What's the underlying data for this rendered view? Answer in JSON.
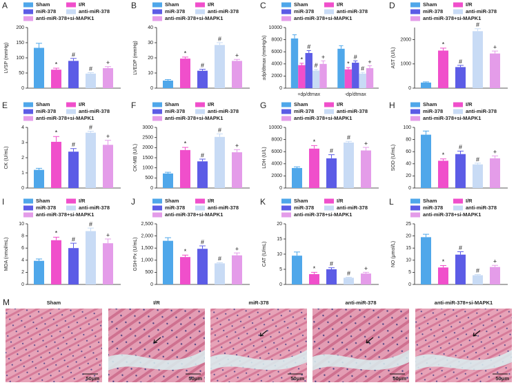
{
  "chart_data": [
    {
      "type": "bar",
      "panel": "A",
      "y_label": "LVSP (mmHg)",
      "ylim": [
        0,
        200
      ],
      "yticks": [
        0,
        50,
        100,
        150,
        200
      ],
      "series": [
        {
          "name": "Sham",
          "color": "#4fa7ea",
          "values": [
            133
          ],
          "errors": [
            15
          ]
        },
        {
          "name": "I/R",
          "color": "#f04fcb",
          "values": [
            61
          ],
          "errors": [
            5
          ],
          "markers": [
            "*"
          ]
        },
        {
          "name": "miR-378",
          "color": "#5c5ce6",
          "values": [
            90
          ],
          "errors": [
            8
          ],
          "markers": [
            "#"
          ]
        },
        {
          "name": "anti-miR-378",
          "color": "#c8dbf5",
          "values": [
            48
          ],
          "errors": [
            3
          ],
          "markers": [
            "#"
          ]
        },
        {
          "name": "anti-miR-378+si-MAPK1",
          "color": "#e49ce9",
          "values": [
            66
          ],
          "errors": [
            5
          ],
          "markers": [
            "+"
          ]
        }
      ]
    },
    {
      "type": "bar",
      "panel": "B",
      "y_label": "LVEDP (mmHg)",
      "ylim": [
        0,
        40
      ],
      "yticks": [
        0,
        10,
        20,
        30,
        40
      ],
      "series": [
        {
          "name": "Sham",
          "color": "#4fa7ea",
          "values": [
            5
          ],
          "errors": [
            0.7
          ]
        },
        {
          "name": "I/R",
          "color": "#f04fcb",
          "values": [
            19.5
          ],
          "errors": [
            1
          ],
          "markers": [
            "*"
          ]
        },
        {
          "name": "miR-378",
          "color": "#5c5ce6",
          "values": [
            11.5
          ],
          "errors": [
            1
          ],
          "markers": [
            "#"
          ]
        },
        {
          "name": "anti-miR-378",
          "color": "#c8dbf5",
          "values": [
            28.5
          ],
          "errors": [
            1.5
          ],
          "markers": [
            "#"
          ]
        },
        {
          "name": "anti-miR-378+si-MAPK1",
          "color": "#e49ce9",
          "values": [
            18
          ],
          "errors": [
            1
          ],
          "markers": [
            "+"
          ]
        }
      ]
    },
    {
      "type": "bar",
      "panel": "C",
      "y_label": "±dp/dtmax (mmHg/s)",
      "ylim": [
        0,
        10000
      ],
      "yticks": [
        0,
        2000,
        4000,
        6000,
        8000,
        10000
      ],
      "categories": [
        "+dp/dtmax",
        "-dp/dtmax"
      ],
      "series": [
        {
          "name": "Sham",
          "color": "#4fa7ea",
          "values": [
            8200,
            6500
          ],
          "errors": [
            600,
            500
          ]
        },
        {
          "name": "I/R",
          "color": "#f04fcb",
          "values": [
            3800,
            3100
          ],
          "errors": [
            300,
            300
          ],
          "markers": [
            "*",
            "*"
          ]
        },
        {
          "name": "miR-378",
          "color": "#5c5ce6",
          "values": [
            5800,
            4200
          ],
          "errors": [
            400,
            300
          ],
          "markers": [
            "#",
            "#"
          ]
        },
        {
          "name": "anti-miR-378",
          "color": "#c8dbf5",
          "values": [
            2900,
            2400
          ],
          "errors": [
            200,
            200
          ],
          "markers": [
            "#",
            "#"
          ]
        },
        {
          "name": "anti-miR-378+si-MAPK1",
          "color": "#e49ce9",
          "values": [
            4000,
            3300
          ],
          "errors": [
            500,
            400
          ],
          "markers": [
            "+",
            "+"
          ]
        }
      ]
    },
    {
      "type": "bar",
      "panel": "D",
      "y_label": "AST (U/L)",
      "ylim": [
        0,
        2500
      ],
      "yticks": [
        0,
        1000,
        2000
      ],
      "series": [
        {
          "name": "Sham",
          "color": "#4fa7ea",
          "values": [
            230
          ],
          "errors": [
            30
          ]
        },
        {
          "name": "I/R",
          "color": "#f04fcb",
          "values": [
            1550
          ],
          "errors": [
            100
          ],
          "markers": [
            "*"
          ]
        },
        {
          "name": "miR-378",
          "color": "#5c5ce6",
          "values": [
            870
          ],
          "errors": [
            70
          ],
          "markers": [
            "#"
          ]
        },
        {
          "name": "anti-miR-378",
          "color": "#c8dbf5",
          "values": [
            2350
          ],
          "errors": [
            100
          ],
          "markers": [
            "#"
          ]
        },
        {
          "name": "anti-miR-378+si-MAPK1",
          "color": "#e49ce9",
          "values": [
            1430
          ],
          "errors": [
            100
          ],
          "markers": [
            "+"
          ]
        }
      ]
    },
    {
      "type": "bar",
      "panel": "E",
      "y_label": "CK (U/mL)",
      "ylim": [
        0,
        4
      ],
      "yticks": [
        0,
        1,
        2,
        3,
        4
      ],
      "series": [
        {
          "name": "Sham",
          "color": "#4fa7ea",
          "values": [
            1.2
          ],
          "errors": [
            0.1
          ]
        },
        {
          "name": "I/R",
          "color": "#f04fcb",
          "values": [
            3.05
          ],
          "errors": [
            0.35
          ],
          "markers": [
            "*"
          ]
        },
        {
          "name": "miR-378",
          "color": "#5c5ce6",
          "values": [
            2.4
          ],
          "errors": [
            0.2
          ],
          "markers": [
            "#"
          ]
        },
        {
          "name": "anti-miR-378",
          "color": "#c8dbf5",
          "values": [
            3.65
          ],
          "errors": [
            0.1
          ],
          "markers": [
            "#"
          ]
        },
        {
          "name": "anti-miR-378+si-MAPK1",
          "color": "#e49ce9",
          "values": [
            2.85
          ],
          "errors": [
            0.3
          ],
          "markers": [
            "+"
          ]
        }
      ]
    },
    {
      "type": "bar",
      "panel": "F",
      "y_label": "CK-MB (U/L)",
      "ylim": [
        0,
        3000
      ],
      "yticks": [
        0,
        500,
        1000,
        1500,
        2000,
        2500,
        3000
      ],
      "series": [
        {
          "name": "Sham",
          "color": "#4fa7ea",
          "values": [
            720
          ],
          "errors": [
            60
          ]
        },
        {
          "name": "I/R",
          "color": "#f04fcb",
          "values": [
            1880
          ],
          "errors": [
            130
          ],
          "markers": [
            "*"
          ]
        },
        {
          "name": "miR-378",
          "color": "#5c5ce6",
          "values": [
            1320
          ],
          "errors": [
            110
          ],
          "markers": [
            "#"
          ]
        },
        {
          "name": "anti-miR-378",
          "color": "#c8dbf5",
          "values": [
            2530
          ],
          "errors": [
            150
          ],
          "markers": [
            "#"
          ]
        },
        {
          "name": "anti-miR-378+si-MAPK1",
          "color": "#e49ce9",
          "values": [
            1770
          ],
          "errors": [
            130
          ],
          "markers": [
            "+"
          ]
        }
      ]
    },
    {
      "type": "bar",
      "panel": "G",
      "y_label": "LDH (U/L)",
      "ylim": [
        0,
        10000
      ],
      "yticks": [
        0,
        2000,
        4000,
        6000,
        8000,
        10000
      ],
      "series": [
        {
          "name": "Sham",
          "color": "#4fa7ea",
          "values": [
            3300
          ],
          "errors": [
            200
          ]
        },
        {
          "name": "I/R",
          "color": "#f04fcb",
          "values": [
            6500
          ],
          "errors": [
            500
          ],
          "markers": [
            "*"
          ]
        },
        {
          "name": "miR-378",
          "color": "#5c5ce6",
          "values": [
            4900
          ],
          "errors": [
            600
          ],
          "markers": [
            "#"
          ]
        },
        {
          "name": "anti-miR-378",
          "color": "#c8dbf5",
          "values": [
            7500
          ],
          "errors": [
            200
          ],
          "markers": [
            "#"
          ]
        },
        {
          "name": "anti-miR-378+si-MAPK1",
          "color": "#e49ce9",
          "values": [
            6200
          ],
          "errors": [
            500
          ],
          "markers": [
            "+"
          ]
        }
      ]
    },
    {
      "type": "bar",
      "panel": "H",
      "y_label": "SOD (U/mL)",
      "ylim": [
        0,
        100
      ],
      "yticks": [
        0,
        20,
        40,
        60,
        80,
        100
      ],
      "series": [
        {
          "name": "Sham",
          "color": "#4fa7ea",
          "values": [
            88
          ],
          "errors": [
            6
          ]
        },
        {
          "name": "I/R",
          "color": "#f04fcb",
          "values": [
            45
          ],
          "errors": [
            3
          ],
          "markers": [
            "*"
          ]
        },
        {
          "name": "miR-378",
          "color": "#5c5ce6",
          "values": [
            56
          ],
          "errors": [
            5
          ],
          "markers": [
            "#"
          ]
        },
        {
          "name": "anti-miR-378",
          "color": "#c8dbf5",
          "values": [
            39
          ],
          "errors": [
            2
          ],
          "markers": [
            "#"
          ]
        },
        {
          "name": "anti-miR-378+si-MAPK1",
          "color": "#e49ce9",
          "values": [
            49
          ],
          "errors": [
            4
          ],
          "markers": [
            "+"
          ]
        }
      ]
    },
    {
      "type": "bar",
      "panel": "I",
      "y_label": "MDA (nmol/mL)",
      "ylim": [
        0,
        10
      ],
      "yticks": [
        0,
        2,
        4,
        6,
        8,
        10
      ],
      "series": [
        {
          "name": "Sham",
          "color": "#4fa7ea",
          "values": [
            3.9
          ],
          "errors": [
            0.3
          ]
        },
        {
          "name": "I/R",
          "color": "#f04fcb",
          "values": [
            7.3
          ],
          "errors": [
            0.5
          ],
          "markers": [
            "*"
          ]
        },
        {
          "name": "miR-378",
          "color": "#5c5ce6",
          "values": [
            6.0
          ],
          "errors": [
            0.8
          ],
          "markers": [
            "#"
          ]
        },
        {
          "name": "anti-miR-378",
          "color": "#c8dbf5",
          "values": [
            8.8
          ],
          "errors": [
            0.5
          ],
          "markers": [
            "#"
          ]
        },
        {
          "name": "anti-miR-378+si-MAPK1",
          "color": "#e49ce9",
          "values": [
            6.8
          ],
          "errors": [
            0.7
          ],
          "markers": [
            "+"
          ]
        }
      ]
    },
    {
      "type": "bar",
      "panel": "J",
      "y_label": "GSH-Px (U/mL)",
      "ylim": [
        0,
        2500
      ],
      "yticks": [
        0,
        500,
        {
          "value": 1000,
          "label": "1,000"
        },
        {
          "value": 1500,
          "label": "1,500"
        },
        {
          "value": 2000,
          "label": "2,000"
        },
        {
          "value": 2500,
          "label": "2,500"
        }
      ],
      "series": [
        {
          "name": "Sham",
          "color": "#4fa7ea",
          "values": [
            1800
          ],
          "errors": [
            130
          ]
        },
        {
          "name": "I/R",
          "color": "#f04fcb",
          "values": [
            1130
          ],
          "errors": [
            80
          ],
          "markers": [
            "*"
          ]
        },
        {
          "name": "miR-378",
          "color": "#5c5ce6",
          "values": [
            1470
          ],
          "errors": [
            120
          ],
          "markers": [
            "#"
          ]
        },
        {
          "name": "anti-miR-378",
          "color": "#c8dbf5",
          "values": [
            870
          ],
          "errors": [
            30
          ],
          "markers": [
            "#"
          ]
        },
        {
          "name": "anti-miR-378+si-MAPK1",
          "color": "#e49ce9",
          "values": [
            1200
          ],
          "errors": [
            100
          ],
          "markers": [
            "+"
          ]
        }
      ]
    },
    {
      "type": "bar",
      "panel": "K",
      "y_label": "CAT (U/mL)",
      "ylim": [
        0,
        20
      ],
      "yticks": [
        0,
        5,
        10,
        15,
        20
      ],
      "series": [
        {
          "name": "Sham",
          "color": "#4fa7ea",
          "values": [
            9.5
          ],
          "errors": [
            1.2
          ]
        },
        {
          "name": "I/R",
          "color": "#f04fcb",
          "values": [
            3.4
          ],
          "errors": [
            0.6
          ],
          "markers": [
            "*"
          ]
        },
        {
          "name": "miR-378",
          "color": "#5c5ce6",
          "values": [
            5.0
          ],
          "errors": [
            0.5
          ],
          "markers": [
            "#"
          ]
        },
        {
          "name": "anti-miR-378",
          "color": "#c8dbf5",
          "values": [
            2.2
          ],
          "errors": [
            0.2
          ],
          "markers": [
            "#"
          ]
        },
        {
          "name": "anti-miR-378+si-MAPK1",
          "color": "#e49ce9",
          "values": [
            3.6
          ],
          "errors": [
            0.4
          ],
          "markers": [
            "+"
          ]
        }
      ]
    },
    {
      "type": "bar",
      "panel": "L",
      "y_label": "NO (μmol/L)",
      "ylim": [
        0,
        25
      ],
      "yticks": [
        0,
        5,
        10,
        15,
        20,
        25
      ],
      "series": [
        {
          "name": "Sham",
          "color": "#4fa7ea",
          "values": [
            19.5
          ],
          "errors": [
            1.2
          ]
        },
        {
          "name": "I/R",
          "color": "#f04fcb",
          "values": [
            7
          ],
          "errors": [
            0.8
          ],
          "markers": [
            "*"
          ]
        },
        {
          "name": "miR-378",
          "color": "#5c5ce6",
          "values": [
            12.3
          ],
          "errors": [
            1.2
          ],
          "markers": [
            "#"
          ]
        },
        {
          "name": "anti-miR-378",
          "color": "#c8dbf5",
          "values": [
            3.8
          ],
          "errors": [
            0.3
          ],
          "markers": [
            "#"
          ]
        },
        {
          "name": "anti-miR-378+si-MAPK1",
          "color": "#e49ce9",
          "values": [
            7.2
          ],
          "errors": [
            0.7
          ],
          "markers": [
            "+"
          ]
        }
      ]
    }
  ],
  "histology": {
    "panel": "M",
    "images": [
      {
        "title": "Sham",
        "scale_bar": "50μm"
      },
      {
        "title": "I/R",
        "scale_bar": "50μm"
      },
      {
        "title": "miR-378",
        "scale_bar": "50μm"
      },
      {
        "title": "anti-miR-378",
        "scale_bar": "50μm"
      },
      {
        "title": "anti-miR-378+si-MAPK1",
        "scale_bar": "50μm"
      }
    ]
  }
}
